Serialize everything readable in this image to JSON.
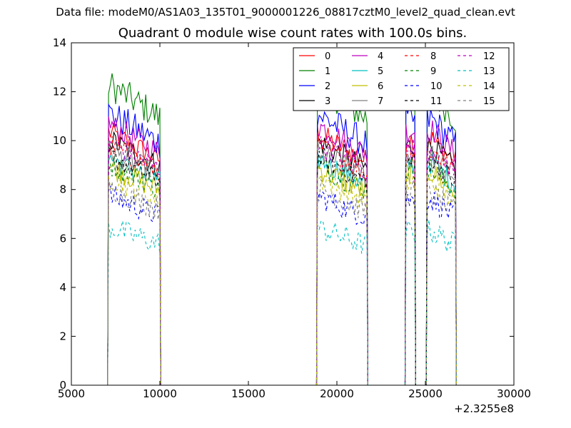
{
  "figure": {
    "suptitle": "Data file: modeM0/AS1A03_135T01_9000001226_08817cztM0_level2_quad_clean.evt"
  },
  "chart_data": {
    "type": "line",
    "title": "Quadrant 0 module wise count rates with 100.0s bins.",
    "xlabel": "",
    "ylabel": "",
    "x_offset_label": "+2.3255e8",
    "xlim": [
      5000,
      30000
    ],
    "ylim": [
      0,
      14
    ],
    "x_ticks": [
      5000,
      10000,
      15000,
      20000,
      25000,
      30000
    ],
    "y_ticks": [
      0,
      2,
      4,
      6,
      8,
      10,
      12,
      14
    ],
    "grid": false,
    "legend": {
      "position": "upper right",
      "columns": 4,
      "entries": [
        "0",
        "1",
        "2",
        "3",
        "4",
        "5",
        "6",
        "7",
        "8",
        "9",
        "10",
        "11",
        "12",
        "13",
        "14",
        "15"
      ]
    },
    "segments": [
      {
        "x_start": 7100,
        "x_end": 10000
      },
      {
        "x_start": 18900,
        "x_end": 21700
      },
      {
        "x_start": 23900,
        "x_end": 24400
      },
      {
        "x_start": 25100,
        "x_end": 26700
      }
    ],
    "gaps": "count rate 0 between segments",
    "series": [
      {
        "name": "0",
        "color": "#ff0000",
        "style": "solid",
        "level": 9.6
      },
      {
        "name": "1",
        "color": "#008000",
        "style": "solid",
        "level": 11.4
      },
      {
        "name": "2",
        "color": "#0000ff",
        "style": "solid",
        "level": 10.3
      },
      {
        "name": "3",
        "color": "#000000",
        "style": "solid",
        "level": 9.3
      },
      {
        "name": "4",
        "color": "#bf00bf",
        "style": "solid",
        "level": 9.9
      },
      {
        "name": "5",
        "color": "#00bfbf",
        "style": "solid",
        "level": 8.6
      },
      {
        "name": "6",
        "color": "#bfbf00",
        "style": "solid",
        "level": 8.3
      },
      {
        "name": "7",
        "color": "#808080",
        "style": "solid",
        "level": 8.9
      },
      {
        "name": "8",
        "color": "#ff0000",
        "style": "dashed",
        "level": 9.1
      },
      {
        "name": "9",
        "color": "#008000",
        "style": "dashed",
        "level": 8.4
      },
      {
        "name": "10",
        "color": "#0000ff",
        "style": "dashed",
        "level": 7.2
      },
      {
        "name": "11",
        "color": "#000000",
        "style": "dashed",
        "level": 8.7
      },
      {
        "name": "12",
        "color": "#bf00bf",
        "style": "dashed",
        "level": 9.2
      },
      {
        "name": "13",
        "color": "#00bfbf",
        "style": "dashed",
        "level": 6.0
      },
      {
        "name": "14",
        "color": "#bfbf00",
        "style": "dashed",
        "level": 7.9
      },
      {
        "name": "15",
        "color": "#808080",
        "style": "dashed",
        "level": 7.5
      }
    ]
  }
}
